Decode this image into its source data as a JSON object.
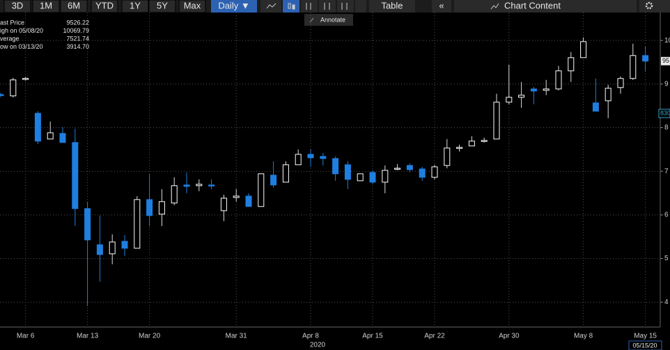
{
  "toolbar": {
    "ranges": [
      "3D",
      "1M",
      "6M",
      "YTD",
      "1Y",
      "5Y",
      "Max"
    ],
    "interval": "Daily ▼",
    "table": "Table",
    "collapse": "«",
    "chart_content": "Chart Content",
    "tooltip": "Annotate"
  },
  "stats": [
    {
      "label": "ast Price",
      "value": "9526.22"
    },
    {
      "label": "igh on 05/08/20",
      "value": "10069.79"
    },
    {
      "label": "verage",
      "value": "7521.74"
    },
    {
      "label": "ow on 03/13/20",
      "value": "3914.70"
    }
  ],
  "chart_data": {
    "type": "candlestick",
    "categories": [
      null,
      null,
      "Mar 6",
      null,
      null,
      null,
      null,
      "Mar 13",
      null,
      null,
      null,
      null,
      "Mar 20",
      null,
      null,
      null,
      null,
      null,
      null,
      "Mar 31",
      null,
      null,
      null,
      null,
      null,
      "Apr 8",
      null,
      null,
      null,
      null,
      "Apr 15",
      null,
      null,
      null,
      null,
      "Apr 22",
      null,
      null,
      null,
      null,
      null,
      "Apr 30",
      null,
      null,
      null,
      null,
      null,
      "May 8",
      null,
      null,
      null,
      null,
      "May 15"
    ],
    "x_year": "2020",
    "up_color": "#ffffff",
    "down_color": "#1e7fe0",
    "open": [
      8760,
      8729,
      9110,
      8330,
      7740,
      7868,
      7660,
      6145,
      5316,
      5108,
      5395,
      5236,
      6352,
      6018,
      6273,
      6687,
      6671,
      6687,
      6097,
      6400,
      6432,
      6193,
      6911,
      6751,
      7150,
      7389,
      7341,
      7293,
      7150,
      6783,
      6974,
      6751,
      7054,
      7134,
      7054,
      6863,
      7134,
      7533,
      7581,
      7692,
      7740,
      8585,
      8697,
      8888,
      8856,
      8888,
      9303,
      9606,
      8569,
      8617,
      8920,
      9128,
      9654
    ],
    "high": [
      8800,
      9144,
      9160,
      8378,
      8140,
      8011,
      7979,
      6305,
      5985,
      5555,
      5539,
      6432,
      6943,
      6592,
      6863,
      6974,
      6815,
      6815,
      6464,
      6592,
      6496,
      6943,
      7230,
      7230,
      7501,
      7501,
      7421,
      7341,
      7230,
      6943,
      7022,
      7134,
      7166,
      7182,
      7102,
      7150,
      7740,
      7612,
      7804,
      7772,
      8777,
      9447,
      9048,
      8936,
      9096,
      9415,
      9734,
      10070,
      9128,
      8984,
      9175,
      9925,
      9861
    ],
    "low": [
      8700,
      8697,
      9080,
      7628,
      7740,
      7660,
      5746,
      3915,
      4470,
      4869,
      5060,
      5236,
      5746,
      5746,
      6225,
      6496,
      6544,
      6592,
      5858,
      6305,
      6193,
      6193,
      6623,
      6751,
      7150,
      7102,
      7134,
      6783,
      6592,
      6783,
      6703,
      6496,
      7022,
      6974,
      6783,
      6815,
      7070,
      7453,
      7581,
      7660,
      7740,
      8537,
      8458,
      8537,
      8745,
      8856,
      9048,
      9606,
      8378,
      8218,
      8777,
      9096,
      9287
    ],
    "close": [
      8740,
      9096,
      9130,
      7692,
      7883,
      7660,
      6145,
      5427,
      5092,
      5379,
      5236,
      6352,
      5985,
      6305,
      6671,
      6655,
      6703,
      6671,
      6384,
      6432,
      6193,
      6943,
      6687,
      7150,
      7389,
      7309,
      7293,
      6943,
      6815,
      6943,
      6751,
      7022,
      7070,
      7038,
      6863,
      7102,
      7533,
      7549,
      7692,
      7708,
      8585,
      8697,
      8745,
      8840,
      8888,
      9303,
      9606,
      9973,
      8378,
      8904,
      9128,
      9654,
      9526.22
    ],
    "ylim": [
      3430,
      10640
    ],
    "yticks": [
      {
        "value": 4000,
        "label": "4"
      },
      {
        "value": 5000,
        "label": "5"
      },
      {
        "value": 6000,
        "label": "6"
      },
      {
        "value": 7000,
        "label": "7"
      },
      {
        "value": 8000,
        "label": "8"
      },
      {
        "value": 9000,
        "label": "9"
      },
      {
        "value": 10000,
        "label": "10"
      }
    ],
    "grid": true,
    "last_tag": "95",
    "level_tag": "830",
    "date_tag": "05/15/20"
  }
}
